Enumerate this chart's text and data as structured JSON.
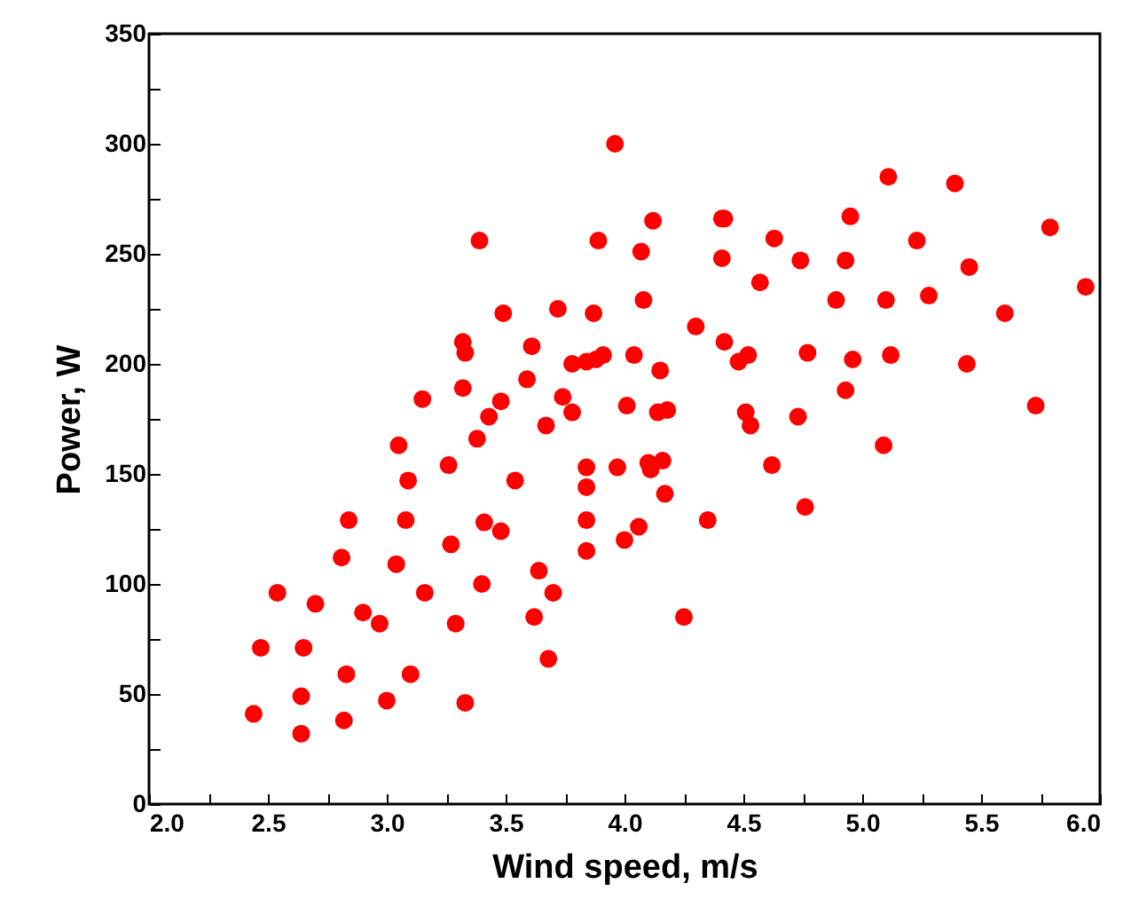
{
  "chart_data": {
    "type": "scatter",
    "xlabel": "Wind speed, m/s",
    "ylabel": "Power, W",
    "marker": "circle",
    "grid": false,
    "legend": false,
    "xlim": [
      2.0,
      6.0
    ],
    "ylim": [
      0,
      350
    ],
    "xticks": [
      {
        "value": 2,
        "label": "2.0"
      },
      {
        "value": 2.25,
        "label": null
      },
      {
        "value": 2.5,
        "label": "2.5"
      },
      {
        "value": 2.75,
        "label": null
      },
      {
        "value": 3,
        "label": "3.0"
      },
      {
        "value": 3.25,
        "label": null
      },
      {
        "value": 3.5,
        "label": "3.5"
      },
      {
        "value": 3.75,
        "label": null
      },
      {
        "value": 4,
        "label": "4.0"
      },
      {
        "value": 4.25,
        "label": null
      },
      {
        "value": 4.5,
        "label": "4.5"
      },
      {
        "value": 4.75,
        "label": null
      },
      {
        "value": 5,
        "label": "5.0"
      },
      {
        "value": 5.25,
        "label": null
      },
      {
        "value": 5.5,
        "label": "5.5"
      },
      {
        "value": 5.75,
        "label": null
      },
      {
        "value": 6,
        "label": "6.0"
      }
    ],
    "yticks": [
      0,
      {
        "value": 25,
        "label": null
      },
      50,
      {
        "value": 75,
        "label": null
      },
      100,
      {
        "value": 125,
        "label": null
      },
      150,
      {
        "value": 175,
        "label": null
      },
      200,
      {
        "value": 225,
        "label": null
      },
      250,
      {
        "value": 275,
        "label": null
      },
      300,
      {
        "value": 325,
        "label": null
      },
      350
    ],
    "series": [
      {
        "color": "#ff0000",
        "x": [
          2.44,
          2.47,
          2.54,
          2.64,
          2.64,
          2.65,
          2.7,
          2.81,
          2.82,
          2.83,
          2.84,
          2.9,
          2.97,
          3.0,
          3.04,
          3.05,
          3.08,
          3.09,
          3.1,
          3.15,
          3.16,
          3.26,
          3.27,
          3.29,
          3.32,
          3.32,
          3.33,
          3.33,
          3.38,
          3.39,
          3.4,
          3.41,
          3.43,
          3.48,
          3.48,
          3.49,
          3.54,
          3.59,
          3.61,
          3.62,
          3.64,
          3.67,
          3.68,
          3.7,
          3.72,
          3.74,
          3.78,
          3.78,
          3.84,
          3.84,
          3.84,
          3.84,
          3.84,
          3.87,
          3.88,
          3.89,
          3.91,
          3.96,
          3.97,
          4.0,
          4.01,
          4.04,
          4.06,
          4.07,
          4.08,
          4.1,
          4.11,
          4.12,
          4.14,
          4.15,
          4.16,
          4.17,
          4.18,
          4.25,
          4.3,
          4.35,
          4.41,
          4.41,
          4.42,
          4.42,
          4.48,
          4.51,
          4.52,
          4.53,
          4.57,
          4.62,
          4.63,
          4.73,
          4.74,
          4.76,
          4.77,
          4.89,
          4.93,
          4.93,
          4.95,
          4.96,
          5.09,
          5.1,
          5.11,
          5.12,
          5.23,
          5.28,
          5.39,
          5.44,
          5.45,
          5.6,
          5.73,
          5.79,
          5.94
        ],
        "values": [
          41,
          71,
          96,
          49,
          32,
          71,
          91,
          112,
          38,
          59,
          129,
          87,
          82,
          47,
          109,
          163,
          129,
          147,
          59,
          184,
          96,
          154,
          118,
          82,
          210,
          189,
          205,
          46,
          166,
          256,
          100,
          128,
          176,
          183,
          124,
          223,
          147,
          193,
          208,
          85,
          106,
          172,
          66,
          96,
          225,
          185,
          200,
          178,
          201,
          153,
          144,
          129,
          115,
          223,
          202,
          256,
          204,
          300,
          153,
          120,
          181,
          204,
          126,
          251,
          229,
          155,
          152,
          265,
          178,
          197,
          156,
          141,
          179,
          85,
          217,
          129,
          266,
          248,
          266,
          210,
          201,
          178,
          204,
          172,
          237,
          154,
          257,
          176,
          247,
          135,
          205,
          229,
          247,
          188,
          267,
          202,
          163,
          229,
          285,
          204,
          256,
          231,
          282,
          200,
          244,
          223,
          181,
          262,
          235
        ]
      }
    ]
  }
}
